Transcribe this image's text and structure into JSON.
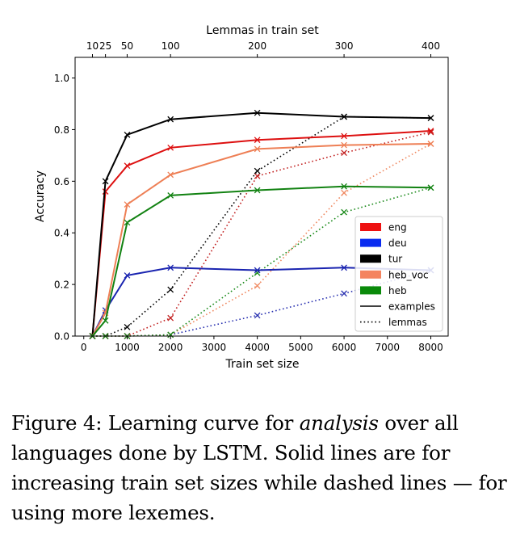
{
  "chart_data": {
    "type": "line",
    "xlabel": "Train set size",
    "ylabel": "Accuracy",
    "top_xlabel": "Lemmas in train set",
    "xlim": [
      -200,
      8400
    ],
    "ylim": [
      0,
      1.08
    ],
    "x_ticks": [
      0,
      1000,
      2000,
      3000,
      4000,
      5000,
      6000,
      7000,
      8000
    ],
    "x_tick_labels": [
      "0",
      "1000",
      "2000",
      "3000",
      "4000",
      "5000",
      "6000",
      "7000",
      "8000"
    ],
    "y_ticks": [
      0.0,
      0.2,
      0.4,
      0.6,
      0.8,
      1.0
    ],
    "y_tick_labels": [
      "0.0",
      "0.2",
      "0.4",
      "0.6",
      "0.8",
      "1.0"
    ],
    "top_ticks": [
      200,
      500,
      1000,
      2000,
      4000,
      6000,
      8000
    ],
    "top_tick_labels": [
      "10",
      "25",
      "50",
      "100",
      "200",
      "300",
      "400"
    ],
    "legend_position": "lower-right",
    "legend": [
      {
        "label": "eng",
        "kind": "color",
        "color": "#ee1111"
      },
      {
        "label": "deu",
        "kind": "color",
        "color": "#0a2bf0"
      },
      {
        "label": "tur",
        "kind": "color",
        "color": "#000000"
      },
      {
        "label": "heb_voc",
        "kind": "color",
        "color": "#f4845f"
      },
      {
        "label": "heb",
        "kind": "color",
        "color": "#0a8a0a"
      },
      {
        "label": "examples",
        "kind": "solid"
      },
      {
        "label": "lemmas",
        "kind": "dotted"
      }
    ],
    "series": [
      {
        "name": "eng",
        "style": "examples",
        "color": "#dd1010",
        "x": [
          200,
          500,
          1000,
          2000,
          4000,
          6000,
          8000
        ],
        "y": [
          0.0,
          0.56,
          0.66,
          0.73,
          0.76,
          0.775,
          0.795
        ]
      },
      {
        "name": "deu",
        "style": "examples",
        "color": "#1a24b0",
        "x": [
          200,
          500,
          1000,
          2000,
          4000,
          6000,
          8000
        ],
        "y": [
          0.0,
          0.1,
          0.235,
          0.265,
          0.255,
          0.265,
          0.255
        ]
      },
      {
        "name": "tur",
        "style": "examples",
        "color": "#000000",
        "x": [
          200,
          500,
          1000,
          2000,
          4000,
          6000,
          8000
        ],
        "y": [
          0.0,
          0.6,
          0.78,
          0.84,
          0.865,
          0.85,
          0.845
        ]
      },
      {
        "name": "heb_voc",
        "style": "examples",
        "color": "#ee7f55",
        "x": [
          200,
          500,
          1000,
          2000,
          4000,
          6000,
          8000
        ],
        "y": [
          0.0,
          0.09,
          0.51,
          0.625,
          0.725,
          0.74,
          0.745
        ]
      },
      {
        "name": "heb",
        "style": "examples",
        "color": "#128212",
        "x": [
          200,
          500,
          1000,
          2000,
          4000,
          6000,
          8000
        ],
        "y": [
          0.0,
          0.06,
          0.44,
          0.545,
          0.565,
          0.58,
          0.575
        ]
      },
      {
        "name": "eng",
        "style": "lemmas",
        "color": "#c22020",
        "x": [
          200,
          500,
          1000,
          2000,
          4000,
          6000,
          8000
        ],
        "y": [
          0.0,
          0.0,
          0.0,
          0.07,
          0.62,
          0.71,
          0.79
        ]
      },
      {
        "name": "deu",
        "style": "lemmas",
        "color": "#2830b0",
        "x": [
          200,
          500,
          1000,
          2000,
          4000,
          6000,
          8000
        ],
        "y": [
          0.0,
          0.0,
          0.0,
          0.005,
          0.08,
          0.165,
          0.255
        ]
      },
      {
        "name": "tur",
        "style": "lemmas",
        "color": "#000000",
        "x": [
          200,
          500,
          1000,
          2000,
          4000,
          6000,
          8000
        ],
        "y": [
          0.0,
          0.0,
          0.035,
          0.18,
          0.64,
          0.85,
          0.845
        ]
      },
      {
        "name": "heb_voc",
        "style": "lemmas",
        "color": "#f08a62",
        "x": [
          200,
          500,
          1000,
          2000,
          4000,
          6000,
          8000
        ],
        "y": [
          0.0,
          0.0,
          0.0,
          0.005,
          0.195,
          0.555,
          0.745
        ]
      },
      {
        "name": "heb",
        "style": "lemmas",
        "color": "#1a8a1a",
        "x": [
          200,
          500,
          1000,
          2000,
          4000,
          6000,
          8000
        ],
        "y": [
          0.0,
          0.0,
          0.0,
          0.005,
          0.245,
          0.48,
          0.575
        ]
      }
    ]
  },
  "caption": {
    "label": "Figure 4:",
    "text_1": " Learning curve for ",
    "emphasis": "analysis",
    "text_2": " over all languages done by ",
    "model": "LSTM",
    "text_3": ". Solid lines are for increasing train set sizes while dashed lines — for using more lexemes."
  }
}
